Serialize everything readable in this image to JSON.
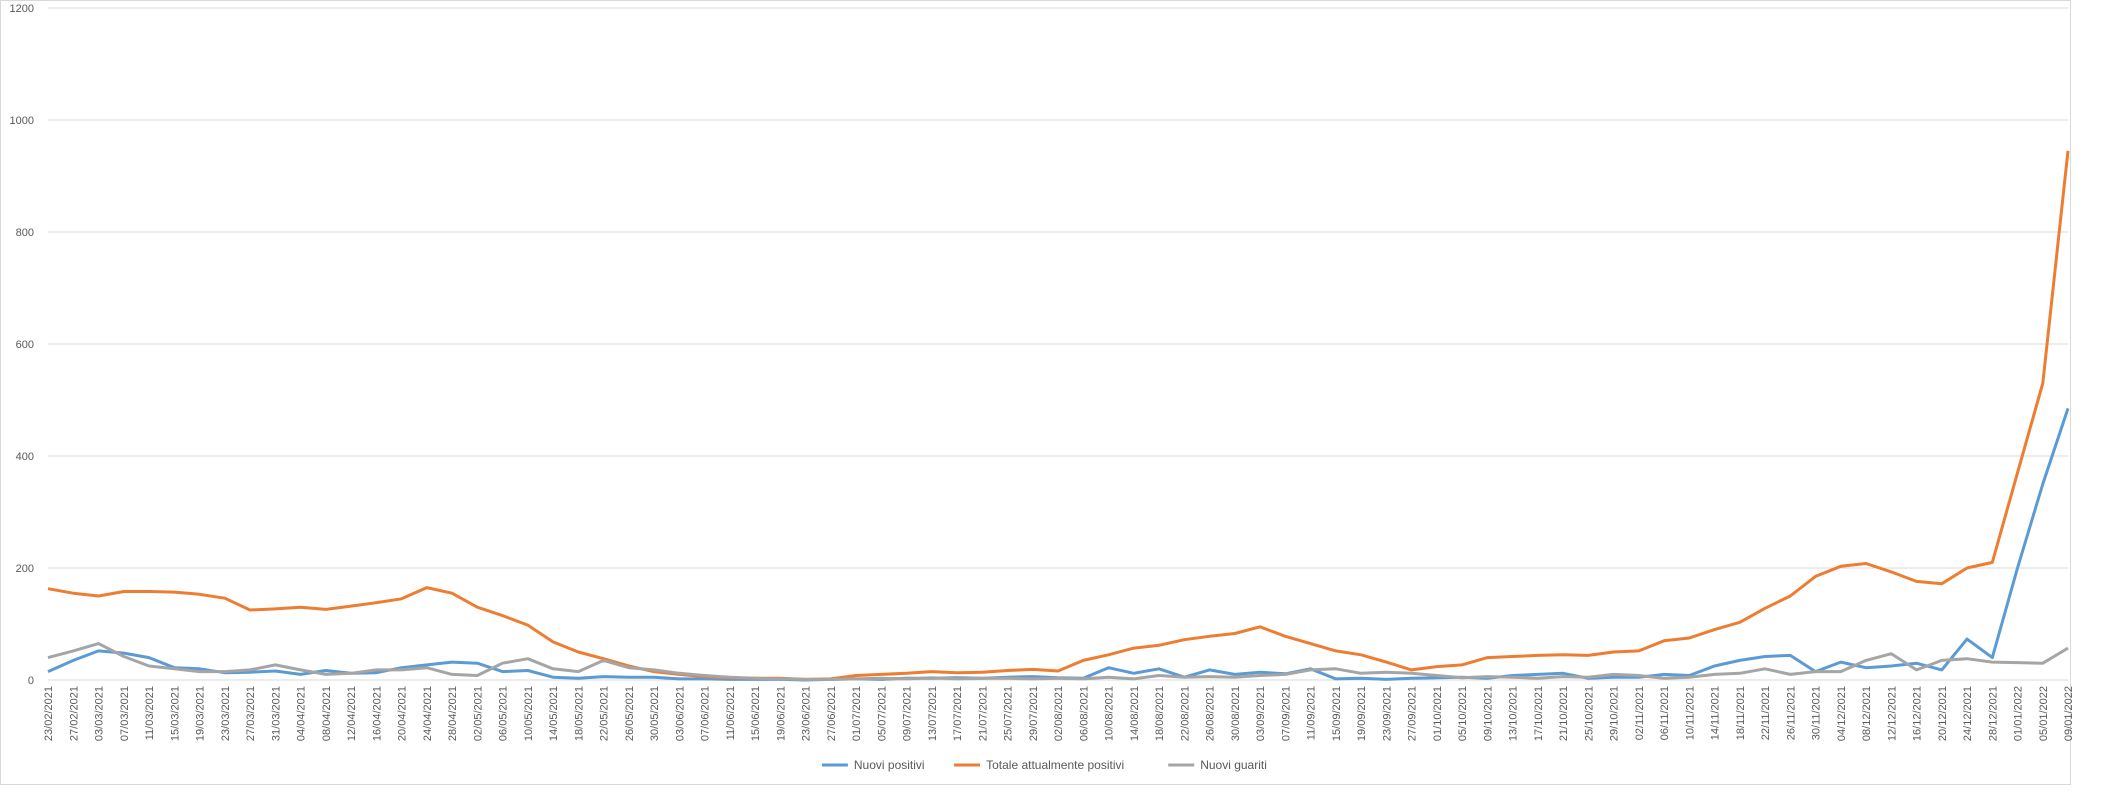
{
  "chart_data": {
    "type": "line",
    "categories": [
      "23/02/2021",
      "27/02/2021",
      "03/03/2021",
      "07/03/2021",
      "11/03/2021",
      "15/03/2021",
      "19/03/2021",
      "23/03/2021",
      "27/03/2021",
      "31/03/2021",
      "04/04/2021",
      "08/04/2021",
      "12/04/2021",
      "16/04/2021",
      "20/04/2021",
      "24/04/2021",
      "28/04/2021",
      "02/05/2021",
      "06/05/2021",
      "10/05/2021",
      "14/05/2021",
      "18/05/2021",
      "22/05/2021",
      "26/05/2021",
      "30/05/2021",
      "03/06/2021",
      "07/06/2021",
      "11/06/2021",
      "15/06/2021",
      "19/06/2021",
      "23/06/2021",
      "27/06/2021",
      "01/07/2021",
      "05/07/2021",
      "09/07/2021",
      "13/07/2021",
      "17/07/2021",
      "21/07/2021",
      "25/07/2021",
      "29/07/2021",
      "02/08/2021",
      "06/08/2021",
      "10/08/2021",
      "14/08/2021",
      "18/08/2021",
      "22/08/2021",
      "26/08/2021",
      "30/08/2021",
      "03/09/2021",
      "07/09/2021",
      "11/09/2021",
      "15/09/2021",
      "19/09/2021",
      "23/09/2021",
      "27/09/2021",
      "01/10/2021",
      "05/10/2021",
      "09/10/2021",
      "13/10/2021",
      "17/10/2021",
      "21/10/2021",
      "25/10/2021",
      "29/10/2021",
      "02/11/2021",
      "06/11/2021",
      "10/11/2021",
      "14/11/2021",
      "18/11/2021",
      "22/11/2021",
      "26/11/2021",
      "30/11/2021",
      "04/12/2021",
      "08/12/2021",
      "12/12/2021",
      "16/12/2021",
      "20/12/2021",
      "24/12/2021",
      "28/12/2021",
      "01/01/2022",
      "05/01/2022",
      "09/01/2022"
    ],
    "series": [
      {
        "name": "Nuovi positivi",
        "color": "#5b9bd5",
        "values": [
          15,
          35,
          52,
          48,
          40,
          22,
          20,
          13,
          14,
          16,
          10,
          17,
          12,
          13,
          22,
          27,
          32,
          30,
          15,
          17,
          5,
          3,
          6,
          5,
          5,
          2,
          2,
          1,
          1,
          1,
          0,
          1,
          2,
          1,
          3,
          3,
          4,
          3,
          5,
          6,
          4,
          3,
          22,
          12,
          20,
          5,
          18,
          10,
          14,
          11,
          20,
          2,
          3,
          1,
          3,
          4,
          5,
          3,
          8,
          10,
          12,
          3,
          5,
          5,
          10,
          8,
          25,
          35,
          42,
          44,
          15,
          32,
          22,
          25,
          30,
          18,
          73,
          40,
          200,
          350,
          485
        ]
      },
      {
        "name": "Totale attualmente positivi",
        "color": "#ed7d31",
        "values": [
          163,
          155,
          150,
          158,
          158,
          157,
          153,
          146,
          125,
          127,
          130,
          126,
          132,
          138,
          145,
          165,
          155,
          130,
          115,
          98,
          68,
          50,
          38,
          25,
          15,
          10,
          6,
          4,
          3,
          3,
          1,
          2,
          8,
          10,
          12,
          15,
          13,
          14,
          17,
          19,
          16,
          35,
          45,
          57,
          62,
          72,
          78,
          83,
          95,
          78,
          65,
          52,
          45,
          32,
          18,
          24,
          27,
          40,
          42,
          44,
          45,
          44,
          50,
          52,
          70,
          75,
          90,
          103,
          128,
          150,
          185,
          203,
          208,
          193,
          176,
          172,
          200,
          210,
          370,
          530,
          945
        ]
      },
      {
        "name": "Nuovi guariti",
        "color": "#a5a5a5",
        "values": [
          40,
          52,
          65,
          42,
          25,
          20,
          15,
          15,
          18,
          27,
          18,
          10,
          12,
          18,
          18,
          22,
          10,
          8,
          30,
          38,
          20,
          15,
          35,
          22,
          18,
          12,
          8,
          5,
          3,
          2,
          1,
          1,
          2,
          3,
          2,
          4,
          2,
          3,
          3,
          2,
          3,
          2,
          5,
          2,
          8,
          5,
          6,
          5,
          8,
          10,
          18,
          20,
          12,
          14,
          12,
          8,
          4,
          6,
          5,
          3,
          6,
          5,
          10,
          8,
          3,
          5,
          10,
          12,
          20,
          10,
          15,
          15,
          35,
          47,
          18,
          35,
          38,
          32,
          31,
          30,
          57
        ]
      }
    ],
    "ylim": [
      0,
      1200
    ],
    "yticks": [
      0,
      200,
      400,
      600,
      800,
      1000,
      1200
    ],
    "grid": true,
    "legend": "bottom"
  }
}
